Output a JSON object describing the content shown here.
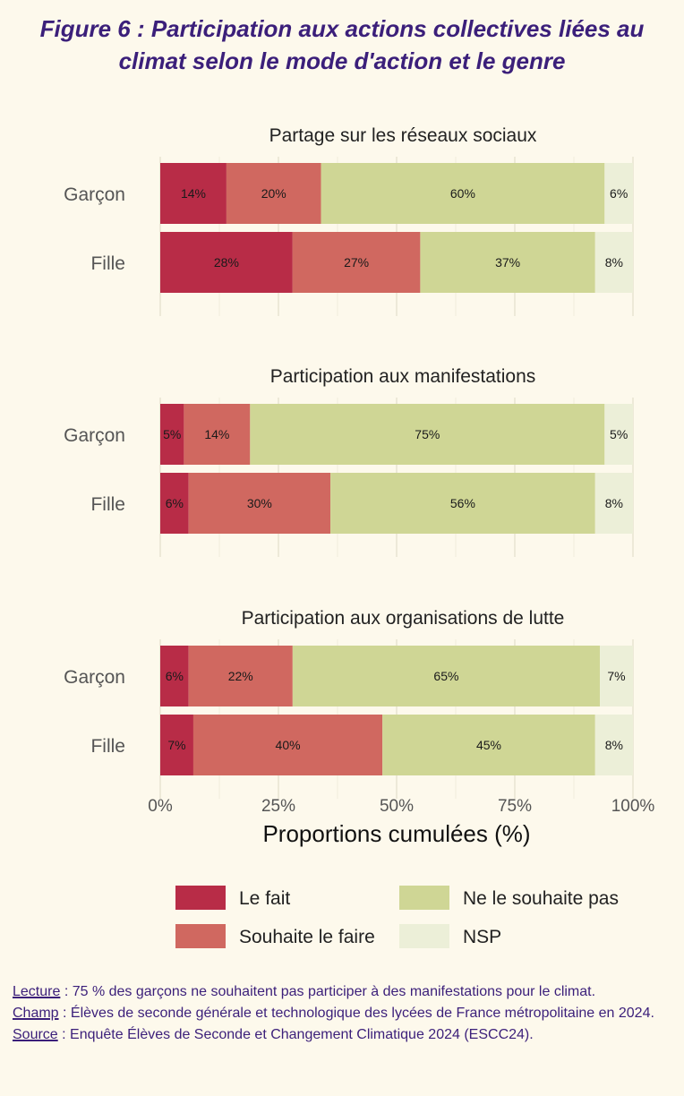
{
  "figure": {
    "title_line1": "Figure 6 : Participation aux actions collectives liées au",
    "title_line2": "climat selon le mode d'action et le genre"
  },
  "chart_data": {
    "type": "bar",
    "orientation": "horizontal",
    "stacked": true,
    "xlabel": "Proportions cumulées (%)",
    "xlim": [
      0,
      100
    ],
    "xticks": [
      0,
      25,
      50,
      75,
      100
    ],
    "xtick_labels": [
      "0%",
      "25%",
      "50%",
      "75%",
      "100%"
    ],
    "grid": true,
    "legend_position": "bottom",
    "series": [
      {
        "name": "Le fait",
        "color": "#b82c47"
      },
      {
        "name": "Souhaite le faire",
        "color": "#d06860"
      },
      {
        "name": "Ne le souhaite pas",
        "color": "#cfd695"
      },
      {
        "name": "NSP",
        "color": "#ecefd8"
      }
    ],
    "panels": [
      {
        "title": "Partage sur les réseaux sociaux",
        "rows": [
          {
            "label": "Garçon",
            "values": [
              14,
              20,
              60,
              6
            ],
            "value_labels": [
              "14%",
              "20%",
              "60%",
              "6%"
            ]
          },
          {
            "label": "Fille",
            "values": [
              28,
              27,
              37,
              8
            ],
            "value_labels": [
              "28%",
              "27%",
              "37%",
              "8%"
            ]
          }
        ]
      },
      {
        "title": "Participation aux manifestations",
        "rows": [
          {
            "label": "Garçon",
            "values": [
              5,
              14,
              75,
              5
            ],
            "value_labels": [
              "5%",
              "14%",
              "75%",
              "5%"
            ]
          },
          {
            "label": "Fille",
            "values": [
              6,
              30,
              56,
              8
            ],
            "value_labels": [
              "6%",
              "30%",
              "56%",
              "8%"
            ]
          }
        ]
      },
      {
        "title": "Participation aux organisations de lutte",
        "rows": [
          {
            "label": "Garçon",
            "values": [
              6,
              22,
              65,
              7
            ],
            "value_labels": [
              "6%",
              "22%",
              "65%",
              "7%"
            ]
          },
          {
            "label": "Fille",
            "values": [
              7,
              40,
              45,
              8
            ],
            "value_labels": [
              "7%",
              "40%",
              "45%",
              "8%"
            ]
          }
        ]
      }
    ]
  },
  "notes": {
    "lecture_key": "Lecture",
    "lecture_text": " : 75 % des garçons ne souhaitent pas participer à des manifestations pour le climat.",
    "champ_key": "Champ",
    "champ_text": " : Élèves de seconde générale et technologique des lycées de France métropolitaine en 2024.",
    "source_key": "Source",
    "source_text": " : Enquête Élèves de Seconde et Changement Climatique 2024 (ESCC24)."
  }
}
